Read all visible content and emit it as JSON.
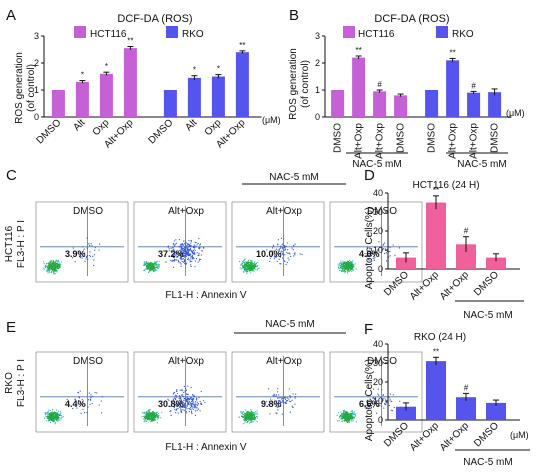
{
  "panel_letters": {
    "A": "A",
    "B": "B",
    "C": "C",
    "D": "D",
    "E": "E",
    "F": "F"
  },
  "unit_um": "(μM)",
  "nac": "NAC-5 mM",
  "colors": {
    "hct": "#c660d6",
    "rko": "#5555ee",
    "pink": "#f0609a",
    "blue": "#5555ee",
    "axis": "#111111"
  },
  "flow": {
    "ylabel_c": [
      "HCT116",
      "FL3-H : P I"
    ],
    "ylabel_e": [
      "RKO",
      "FL3-H : P I"
    ],
    "xlabel": "FL1-H : Annexin V",
    "labels_c": [
      "DMSO",
      "Alt+Oxp",
      "Alt+Oxp",
      "DMSO"
    ],
    "pcts_c": [
      "3.9%",
      "37.2%",
      "10.0%",
      "4.0%"
    ],
    "labels_e": [
      "DMSO",
      "Alt+Oxp",
      "Alt+Oxp",
      "DMSO"
    ],
    "pcts_e": [
      "4.4%",
      "30.8%",
      "9.8%",
      "6.6%"
    ]
  },
  "chart_data": [
    {
      "panel": "A",
      "type": "bar",
      "title": "DCF-DA (ROS)",
      "ylabel": "ROS generation\n(of control)",
      "ylim": [
        0,
        3
      ],
      "yticks": [
        0,
        1,
        2,
        3
      ],
      "series": [
        {
          "name": "HCT116",
          "color": "#c660d6",
          "categories": [
            "DMSO",
            "Alt",
            "Oxp",
            "Alt+Oxp"
          ],
          "values": [
            1.0,
            1.3,
            1.6,
            2.55
          ],
          "errors": [
            0.0,
            0.05,
            0.06,
            0.06
          ],
          "sig": [
            "",
            "*",
            "*",
            "**"
          ]
        },
        {
          "name": "RKO",
          "color": "#5555ee",
          "categories": [
            "DMSO",
            "Alt",
            "Oxp",
            "Alt+Oxp"
          ],
          "values": [
            1.0,
            1.45,
            1.5,
            2.4
          ],
          "errors": [
            0.0,
            0.08,
            0.07,
            0.05
          ],
          "sig": [
            "",
            "*",
            "*",
            "**"
          ]
        }
      ]
    },
    {
      "panel": "B",
      "type": "bar",
      "title": "DCF-DA (ROS)",
      "ylabel": "ROS generation\n(of control)",
      "ylim": [
        0,
        3
      ],
      "yticks": [
        0,
        1,
        2,
        3
      ],
      "series": [
        {
          "name": "HCT116",
          "color": "#c660d6",
          "categories": [
            "DMSO",
            "Alt+Oxp",
            "Alt+Oxp",
            "DMSO"
          ],
          "values": [
            1.0,
            2.2,
            0.95,
            0.8
          ],
          "errors": [
            0.0,
            0.06,
            0.05,
            0.05
          ],
          "sig": [
            "",
            "**",
            "#",
            ""
          ]
        },
        {
          "name": "RKO",
          "color": "#5555ee",
          "categories": [
            "DMSO",
            "Alt+Oxp",
            "Alt+Oxp",
            "DMSO"
          ],
          "values": [
            1.0,
            2.1,
            0.9,
            0.92
          ],
          "errors": [
            0.0,
            0.07,
            0.05,
            0.12
          ],
          "sig": [
            "",
            "**",
            "#",
            ""
          ]
        }
      ]
    },
    {
      "panel": "D",
      "type": "bar",
      "title": "HCT116 (24 H)",
      "ylabel": "Apoptotic Cells(%)",
      "ylim": [
        0,
        40
      ],
      "yticks": [
        0,
        10,
        20,
        30,
        40
      ],
      "categories": [
        "DMSO",
        "Alt+Oxp",
        "Alt+Oxp",
        "DMSO"
      ],
      "values": [
        6,
        35,
        13,
        6
      ],
      "errors": [
        2.5,
        3.5,
        4,
        2
      ],
      "sig": [
        "",
        "**",
        "#",
        ""
      ],
      "color": "#f0609a"
    },
    {
      "panel": "F",
      "type": "bar",
      "title": "RKO (24 H)",
      "ylabel": "Apoptotic Cells(%)",
      "ylim": [
        0,
        40
      ],
      "yticks": [
        0,
        10,
        20,
        30,
        40
      ],
      "categories": [
        "DMSO",
        "Alt+Oxp",
        "Alt+Oxp",
        "DMSO"
      ],
      "values": [
        7,
        31,
        12,
        9
      ],
      "errors": [
        2,
        2,
        2,
        1.5
      ],
      "sig": [
        "",
        "**",
        "#",
        ""
      ],
      "color": "#5555ee"
    }
  ]
}
